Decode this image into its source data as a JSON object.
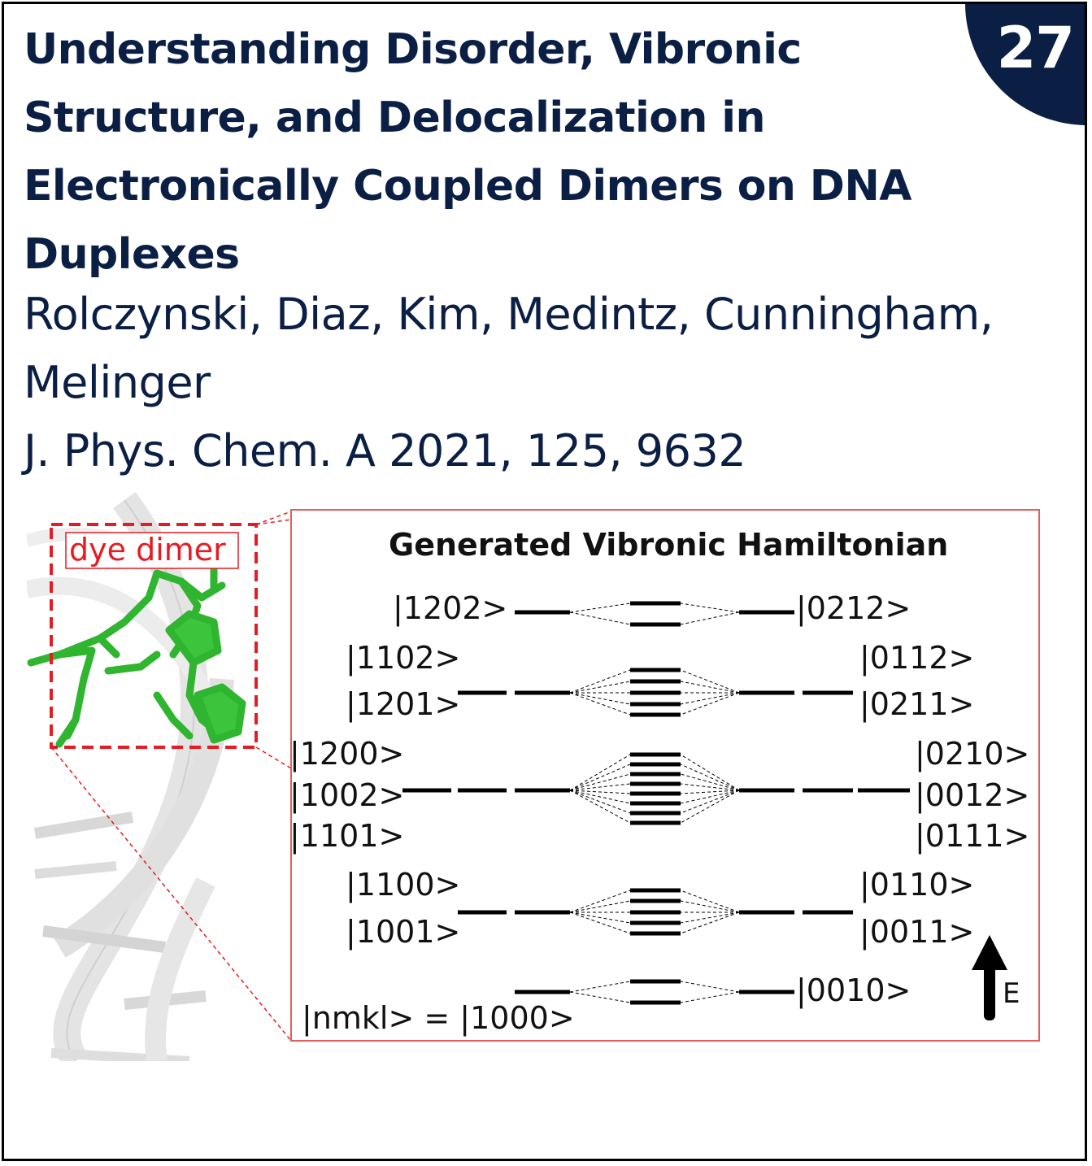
{
  "badge": {
    "number": "27"
  },
  "title": "Understanding Disorder, Vibronic Structure, and Delocalization in Electronically Coupled Dimers on DNA Duplexes",
  "authors": "Rolczynski, Diaz, Kim, Medintz, Cunningham, Melinger",
  "citation": "J. Phys. Chem. A 2021, 125, 9632",
  "figure": {
    "dimer_label": "dye dimer",
    "diagram_title": "Generated Vibronic Hamiltonian",
    "energy_axis_label": "E",
    "basis_label": "|nmkl> = |1000>",
    "left_states": [
      "|1202>",
      "|1102>",
      "|1201>",
      "|1200>",
      "|1002>",
      "|1101>",
      "|1100>",
      "|1001>"
    ],
    "right_states": [
      "|0212>",
      "|0112>",
      "|0211>",
      "|0210>",
      "|0012>",
      "|0111>",
      "|0110>",
      "|0011>",
      "|0010>"
    ]
  }
}
